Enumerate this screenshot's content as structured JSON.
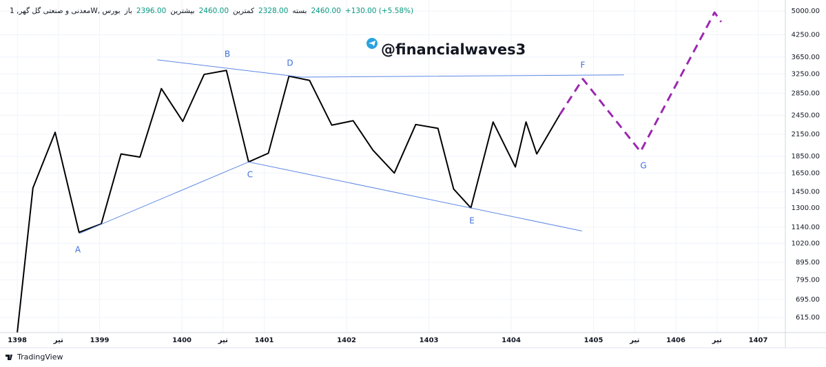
{
  "header": {
    "symbol": "معدنی و صنعتی گل گهر, 1W, بورس",
    "ohlc": [
      {
        "label": "باز",
        "value": "2396.00"
      },
      {
        "label": "بیشترین",
        "value": "2460.00"
      },
      {
        "label": "کمترین",
        "value": "2328.00"
      },
      {
        "label": "بسته",
        "value": "2460.00"
      }
    ],
    "change": "+130.00 (+5.58%)"
  },
  "watermark": "@financialwaves3",
  "brand": "TradingView",
  "chart_data": {
    "type": "line",
    "log_scale": true,
    "grid": true,
    "xlim": [
      1397.79,
      1407.33
    ],
    "ylim": [
      554,
      5390
    ],
    "xticks": [
      {
        "value": 1398,
        "label": "1398"
      },
      {
        "value": 1398.5,
        "label": "تیر"
      },
      {
        "value": 1399,
        "label": "1399"
      },
      {
        "value": 1400,
        "label": "1400"
      },
      {
        "value": 1400.5,
        "label": "تیر"
      },
      {
        "value": 1401,
        "label": "1401"
      },
      {
        "value": 1402,
        "label": "1402"
      },
      {
        "value": 1403,
        "label": "1403"
      },
      {
        "value": 1404,
        "label": "1404"
      },
      {
        "value": 1405,
        "label": "1405"
      },
      {
        "value": 1405.5,
        "label": "تیر"
      },
      {
        "value": 1406,
        "label": "1406"
      },
      {
        "value": 1406.5,
        "label": "تیر"
      },
      {
        "value": 1407,
        "label": "1407"
      }
    ],
    "yticks": [
      {
        "value": 5000,
        "label": "5000.00"
      },
      {
        "value": 4250,
        "label": "4250.00"
      },
      {
        "value": 3650,
        "label": "3650.00"
      },
      {
        "value": 3250,
        "label": "3250.00"
      },
      {
        "value": 2850,
        "label": "2850.00"
      },
      {
        "value": 2450,
        "label": "2450.00"
      },
      {
        "value": 2150,
        "label": "2150.00"
      },
      {
        "value": 1850,
        "label": "1850.00"
      },
      {
        "value": 1650,
        "label": "1650.00"
      },
      {
        "value": 1450,
        "label": "1450.00"
      },
      {
        "value": 1300,
        "label": "1300.00"
      },
      {
        "value": 1140,
        "label": "1140.00"
      },
      {
        "value": 1020,
        "label": "1020.00"
      },
      {
        "value": 895,
        "label": "895.00"
      },
      {
        "value": 795,
        "label": "795.00"
      },
      {
        "value": 695,
        "label": "695.00"
      },
      {
        "value": 615,
        "label": "615.00"
      }
    ],
    "series": [
      {
        "color": "#000000",
        "dash": false,
        "width": 2,
        "x": [
          1398.0,
          1398.19,
          1398.46,
          1398.75,
          1399.02,
          1399.26,
          1399.49,
          1399.75,
          1400.01,
          1400.27,
          1400.54,
          1400.81,
          1401.05,
          1401.3,
          1401.55,
          1401.82,
          1402.08,
          1402.32,
          1402.58,
          1402.84,
          1403.11,
          1403.3,
          1403.51,
          1403.78,
          1404.05,
          1404.18,
          1404.31,
          1404.59
        ],
        "values": [
          555,
          1490,
          2180,
          1100,
          1165,
          1880,
          1840,
          2940,
          2350,
          3240,
          3330,
          1780,
          1890,
          3200,
          3110,
          2290,
          2360,
          1930,
          1650,
          2300,
          2240,
          1480,
          1300,
          2340,
          1720,
          2340,
          1880,
          2460
        ]
      },
      {
        "color": "#9c27b0",
        "dash": true,
        "width": 3,
        "x": [
          1404.59,
          1404.87,
          1405.57,
          1406.47,
          1406.55
        ],
        "values": [
          2460,
          3140,
          1910,
          4950,
          4640
        ]
      },
      {
        "color": "#5b86e5",
        "dash": false,
        "width": 1,
        "x": [
          1399.7,
          1401.45,
          1405.37
        ],
        "values": [
          3580,
          3180,
          3230
        ]
      },
      {
        "color": "#5b86e5",
        "dash": false,
        "width": 1,
        "x": [
          1398.75,
          1400.81,
          1404.86
        ],
        "values": [
          1090,
          1780,
          1110
        ]
      }
    ],
    "annotations": [
      "A",
      "B",
      "C",
      "D",
      "E",
      "F",
      "G"
    ]
  }
}
